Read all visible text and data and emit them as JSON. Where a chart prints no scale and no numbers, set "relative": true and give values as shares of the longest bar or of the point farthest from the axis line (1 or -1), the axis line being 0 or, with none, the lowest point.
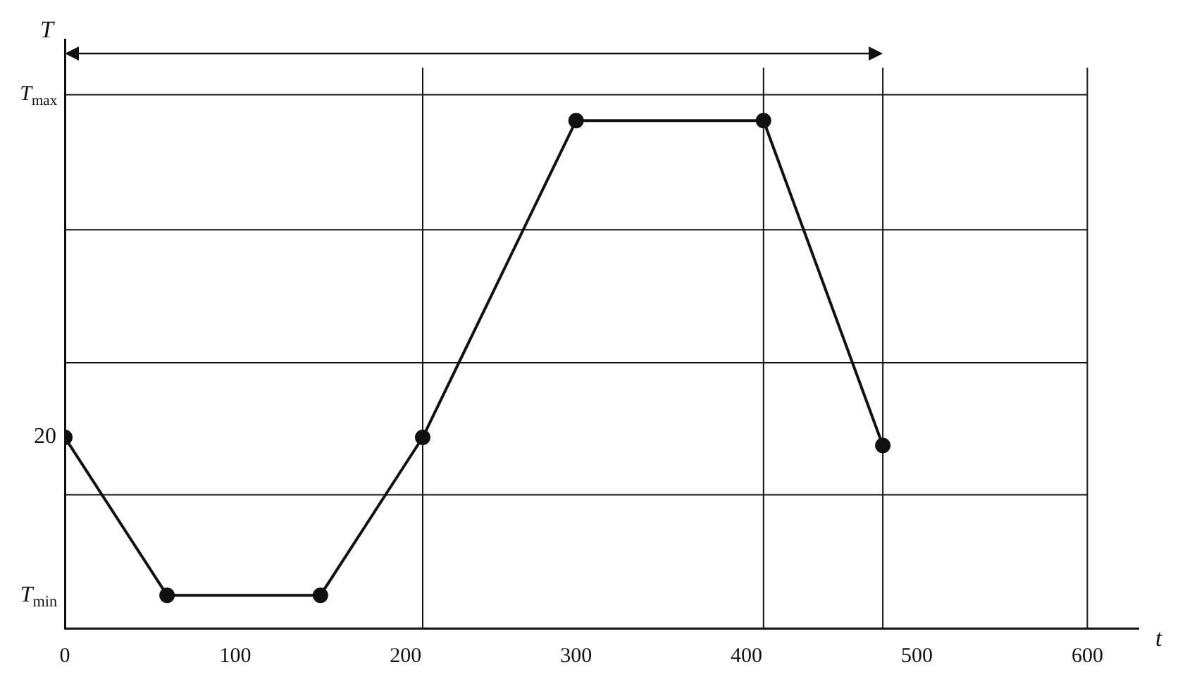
{
  "chart_data": {
    "type": "line",
    "xlabel": "t",
    "ylabel": "T",
    "relative": true,
    "x": [
      0,
      60,
      150,
      210,
      300,
      410,
      480
    ],
    "series": [
      {
        "color": "#111111",
        "values": [
          0.376,
          0.065,
          0.065,
          0.376,
          1,
          1,
          0.36
        ]
      }
    ],
    "xlim": [
      0,
      630
    ],
    "xticks": [
      0,
      100,
      200,
      300,
      400,
      500,
      600
    ],
    "marker": "circle",
    "line_style": "solid",
    "grid": false,
    "legend": false,
    "ref_lines": [
      {
        "axis": "y",
        "value": 1.051,
        "label": "T$_{max}$",
        "color": "#111111"
      },
      {
        "axis": "y",
        "value": 0.785,
        "color": "#111111"
      },
      {
        "axis": "y",
        "value": 0.523,
        "color": "#111111"
      },
      {
        "axis": "y",
        "value": 0.263,
        "color": "#111111"
      },
      {
        "axis": "x",
        "value": 210,
        "color": "#111111"
      },
      {
        "axis": "x",
        "value": 410,
        "color": "#111111"
      },
      {
        "axis": "x",
        "value": 480,
        "color": "#111111"
      },
      {
        "axis": "x",
        "value": 600,
        "color": "#111111"
      }
    ],
    "annotations": [
      {
        "text": "20",
        "x": 0,
        "y": 0.376
      },
      "T$_{min}$"
    ]
  }
}
